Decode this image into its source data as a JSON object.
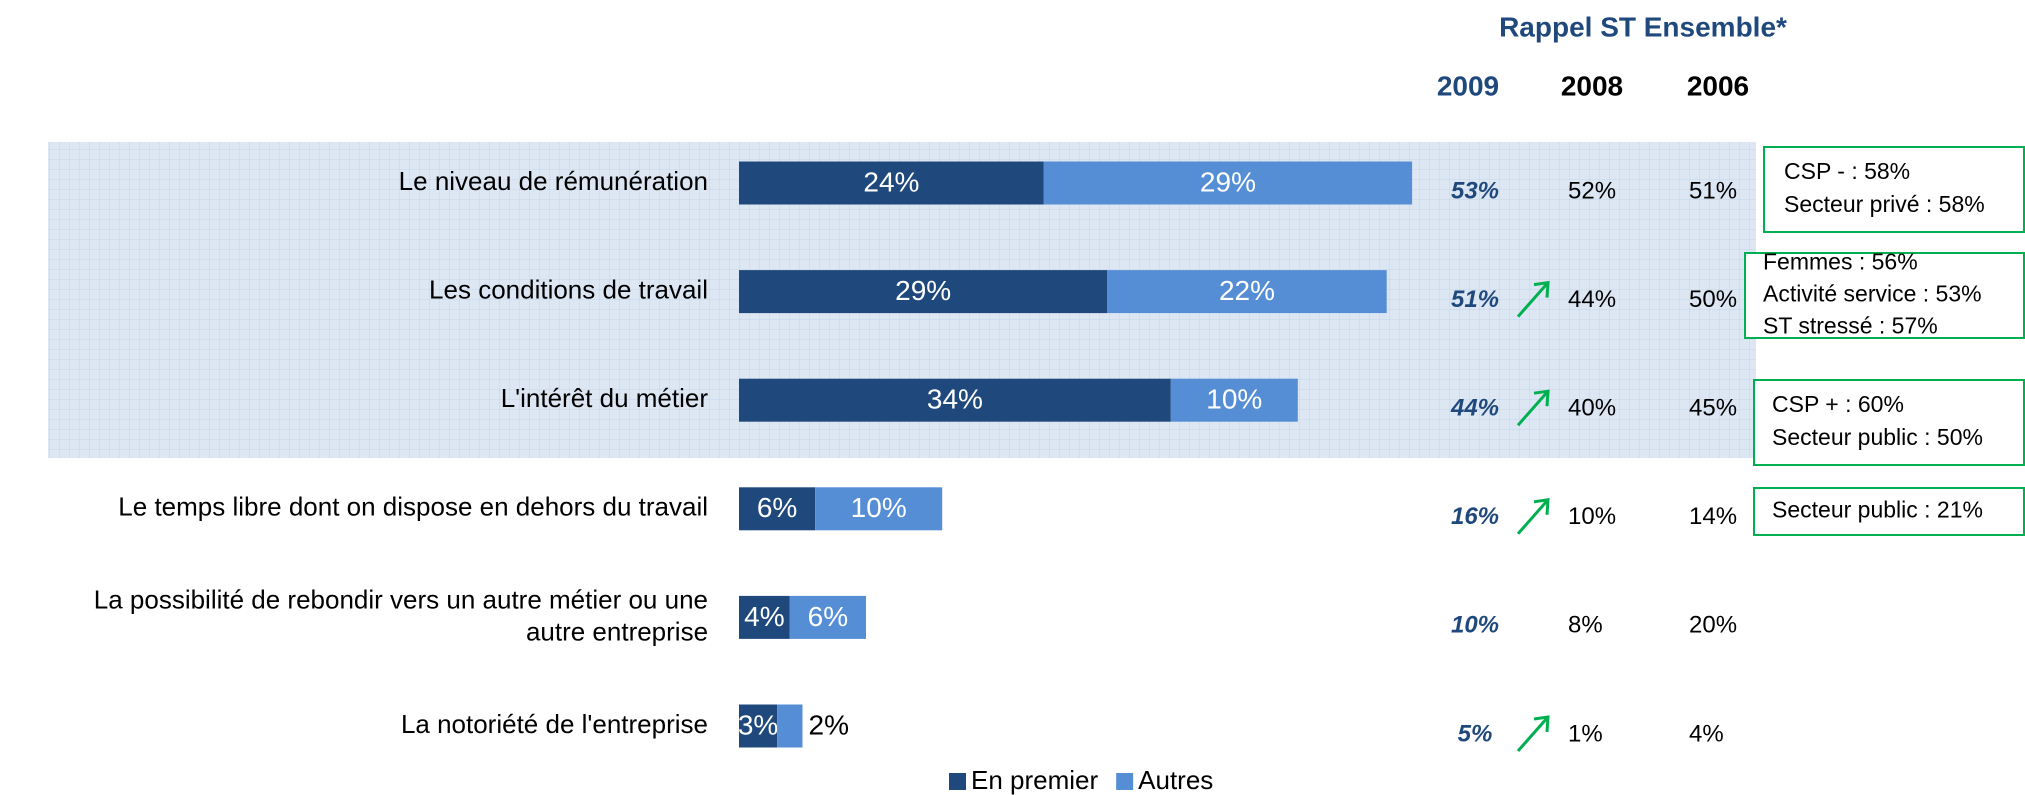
{
  "chart_data": {
    "type": "bar",
    "orientation": "horizontal",
    "stacked": true,
    "categories": [
      "Le niveau de rémunération",
      "Les conditions de travail",
      "L'intérêt du métier",
      "Le temps libre dont on dispose en dehors du travail",
      "La possibilité de rebondir vers un autre métier ou une autre entreprise",
      "La notoriété de l'entreprise"
    ],
    "series": [
      {
        "name": "En premier",
        "color": "#1f497d",
        "values": [
          24,
          29,
          34,
          6,
          4,
          3
        ],
        "value_labels": [
          "24%",
          "29%",
          "34%",
          "6%",
          "4%",
          "3%"
        ]
      },
      {
        "name": "Autres",
        "color": "#558ed5",
        "values": [
          29,
          22,
          10,
          10,
          6,
          2
        ],
        "value_labels": [
          "29%",
          "22%",
          "10%",
          "10%",
          "6%",
          "2%"
        ]
      }
    ],
    "legend": "bottom"
  },
  "recall": {
    "title": "Rappel ST Ensemble*",
    "years": [
      "2009",
      "2008",
      "2006"
    ],
    "rows": [
      [
        "53%",
        "52%",
        "51%"
      ],
      [
        "51%",
        "44%",
        "50%"
      ],
      [
        "44%",
        "40%",
        "45%"
      ],
      [
        "16%",
        "10%",
        "14%"
      ],
      [
        "10%",
        "8%",
        "20%"
      ],
      [
        "5%",
        "1%",
        "4%"
      ]
    ],
    "rising": [
      false,
      true,
      true,
      true,
      false,
      true
    ],
    "color": "#00b050"
  },
  "notes": [
    {
      "row": 0,
      "lines": [
        "CSP - : 58%",
        "Secteur privé : 58%"
      ]
    },
    {
      "row": 1,
      "lines": [
        "Femmes :  56%",
        "Activité service : 53%",
        "ST stressé : 57%"
      ]
    },
    {
      "row": 2,
      "lines": [
        "CSP + : 60%",
        "Secteur public : 50%"
      ]
    },
    {
      "row": 3,
      "lines": [
        "Secteur public : 21%"
      ]
    }
  ]
}
